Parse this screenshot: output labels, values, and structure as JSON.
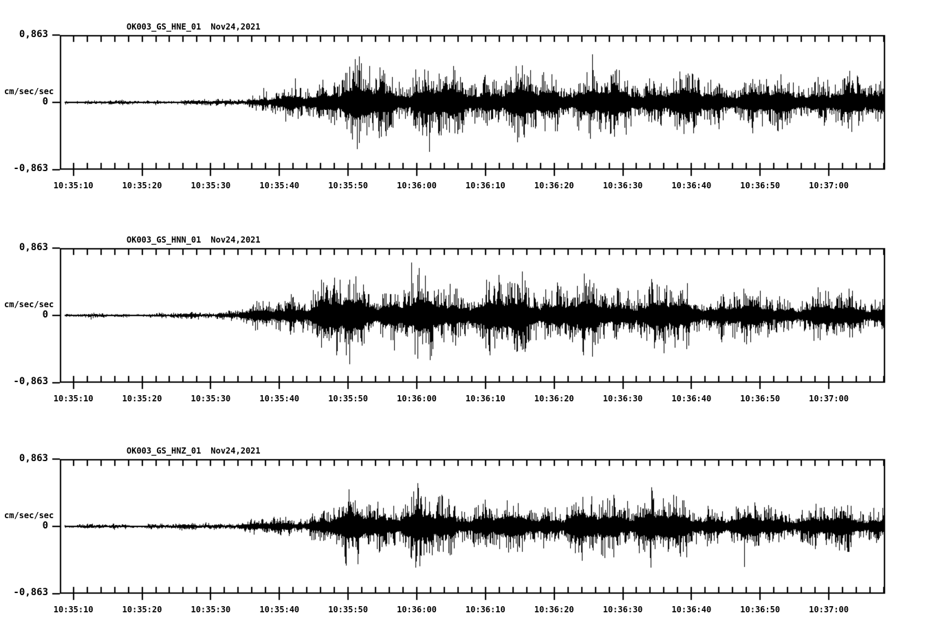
{
  "page": {
    "background_color": "#ffffff",
    "ink_color": "#000000"
  },
  "chart_data": {
    "type": "line",
    "subtype": "seismogram-three-component",
    "ylabel": "cm/sec/sec",
    "ylim": [
      -0.863,
      0.863
    ],
    "y_tick_labels": {
      "top": "0,863",
      "zero": "0",
      "bottom": "-0,863"
    },
    "x_tick_labels": [
      "10:35:10",
      "10:35:20",
      "10:35:30",
      "10:35:40",
      "10:35:50",
      "10:36:00",
      "10:36:10",
      "10:36:20",
      "10:36:30",
      "10:36:40",
      "10:36:50",
      "10:37:00"
    ],
    "x_major_tick_interval_s": 10,
    "x_minor_tick_interval_s": 2,
    "duration_s": 120,
    "grid": false,
    "legend": false,
    "series": [
      {
        "title": "OK003_GS_HNE_01",
        "date": "Nov24,2021",
        "envelope_t": [
          0,
          10,
          16,
          20,
          24,
          28,
          32,
          35,
          38,
          41,
          44,
          48,
          54,
          60,
          66,
          72,
          78,
          84,
          90,
          96,
          102,
          108,
          114,
          120
        ],
        "envelope_a": [
          0.03,
          0.031,
          0.034,
          0.042,
          0.058,
          0.095,
          0.165,
          0.26,
          0.38,
          0.47,
          0.52,
          0.46,
          0.48,
          0.42,
          0.45,
          0.46,
          0.42,
          0.44,
          0.4,
          0.37,
          0.35,
          0.38,
          0.34,
          0.36
        ]
      },
      {
        "title": "OK003_GS_HNN_01",
        "date": "Nov24,2021",
        "envelope_t": [
          0,
          10,
          14,
          18,
          22,
          26,
          30,
          33,
          36,
          39,
          42,
          46,
          52,
          58,
          64,
          70,
          76,
          82,
          88,
          94,
          100,
          106,
          112,
          120
        ],
        "envelope_a": [
          0.028,
          0.029,
          0.032,
          0.044,
          0.068,
          0.115,
          0.19,
          0.28,
          0.42,
          0.52,
          0.58,
          0.5,
          0.53,
          0.46,
          0.5,
          0.52,
          0.46,
          0.43,
          0.45,
          0.37,
          0.34,
          0.31,
          0.33,
          0.33
        ]
      },
      {
        "title": "OK003_GS_HNZ_01",
        "date": "Nov24,2021",
        "envelope_t": [
          0,
          8,
          12,
          16,
          20,
          24,
          28,
          32,
          36,
          40,
          44,
          48,
          52,
          56,
          60,
          66,
          72,
          78,
          82,
          86,
          90,
          94,
          100,
          106,
          112,
          120
        ],
        "envelope_a": [
          0.036,
          0.037,
          0.039,
          0.043,
          0.05,
          0.065,
          0.09,
          0.13,
          0.19,
          0.3,
          0.52,
          0.43,
          0.46,
          0.4,
          0.37,
          0.35,
          0.37,
          0.4,
          0.46,
          0.52,
          0.38,
          0.33,
          0.31,
          0.29,
          0.31,
          0.3
        ]
      }
    ]
  }
}
